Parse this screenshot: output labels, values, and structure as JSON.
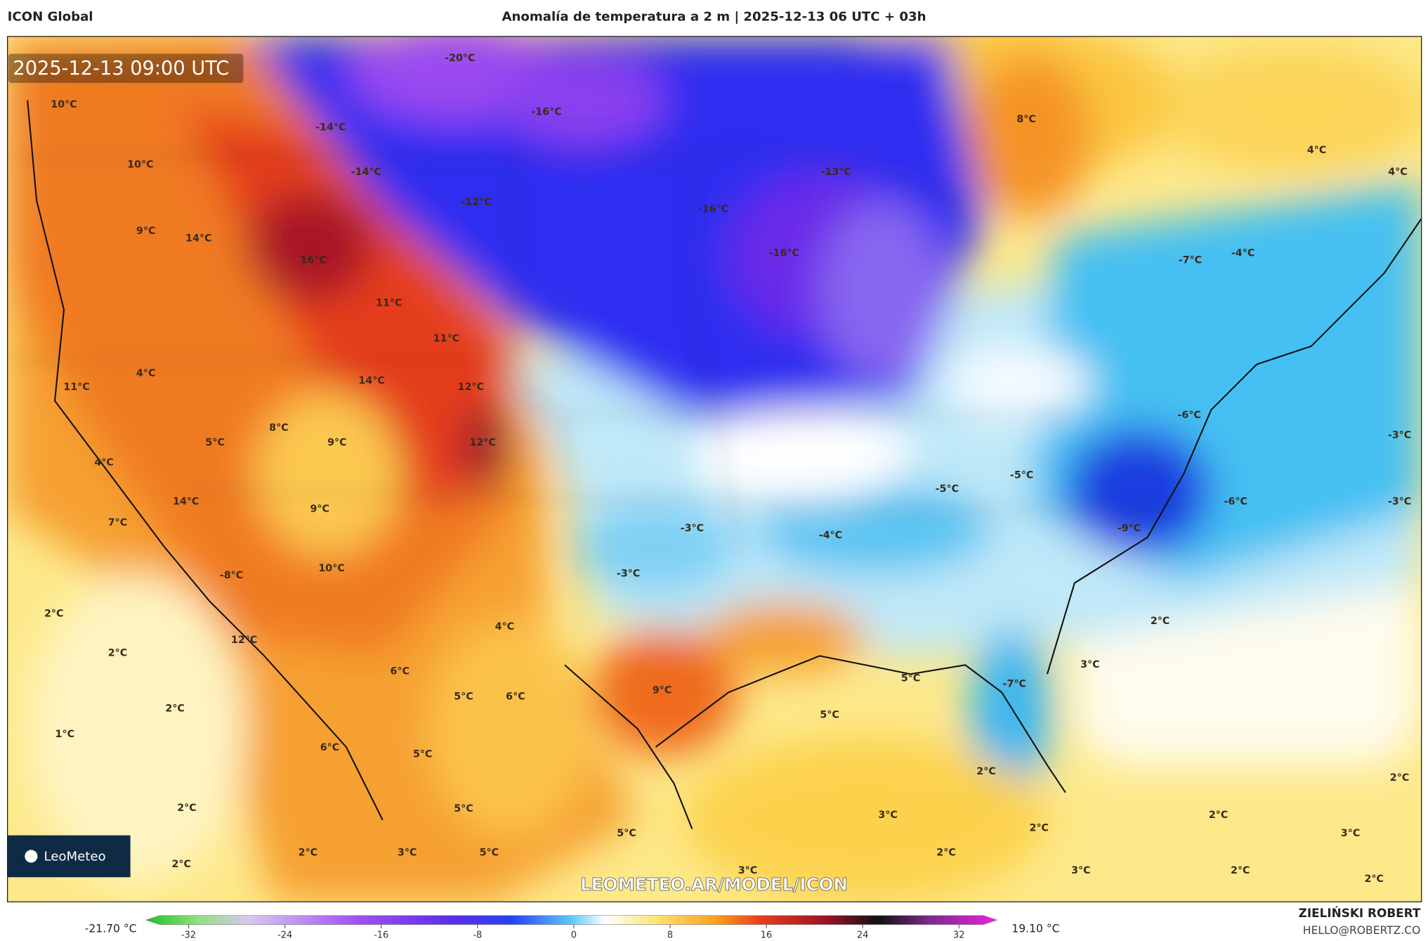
{
  "header": {
    "left": "ICON Global",
    "title": "Anomalía de temperatura a 2 m | 2025-12-13 06 UTC + 03h"
  },
  "map": {
    "timestamp": "2025-12-13 09:00 UTC",
    "watermark": "LEOMETEO.AR/MODEL/ICON",
    "logo": "LeoMeteo",
    "labels": [
      "10°C",
      "-20°C",
      "-14°C",
      "-16°C",
      "8°C",
      "4°C",
      "4°C",
      "10°C",
      "-14°C",
      "-12°C",
      "-13°C",
      "-16°C",
      "9°C",
      "14°C",
      "16°C",
      "-16°C",
      "-7°C",
      "-4°C",
      "11°C",
      "11°C",
      "4°C",
      "14°C",
      "12°C",
      "11°C",
      "-6°C",
      "8°C",
      "-3°C",
      "5°C",
      "9°C",
      "12°C",
      "4°C",
      "-5°C",
      "-5°C",
      "-6°C",
      "-3°C",
      "14°C",
      "9°C",
      "7°C",
      "-3°C",
      "-9°C",
      "-4°C",
      "-3°C",
      "10°C",
      "-8°C",
      "2°C",
      "2°C",
      "4°C",
      "12°C",
      "2°C",
      "3°C",
      "6°C",
      "5°C",
      "-7°C",
      "9°C",
      "5°C",
      "6°C",
      "2°C",
      "5°C",
      "1°C",
      "6°C",
      "5°C",
      "2°C",
      "2°C",
      "2°C",
      "5°C",
      "3°C",
      "2°C",
      "2°C",
      "3°C",
      "5°C",
      "2°C",
      "3°C",
      "2°C",
      "5°C",
      "2°C",
      "3°C",
      "3°C",
      "2°C",
      "2°C"
    ]
  },
  "colorbar": {
    "min_label": "-21.70 °C",
    "max_label": "19.10 °C",
    "ticks": [
      -32,
      -24,
      -16,
      -8,
      0,
      8,
      16,
      24,
      32
    ]
  },
  "credits": {
    "author": "ZIELIŃSKI ROBERT",
    "email": "HELLO@ROBERTZ.CO"
  }
}
